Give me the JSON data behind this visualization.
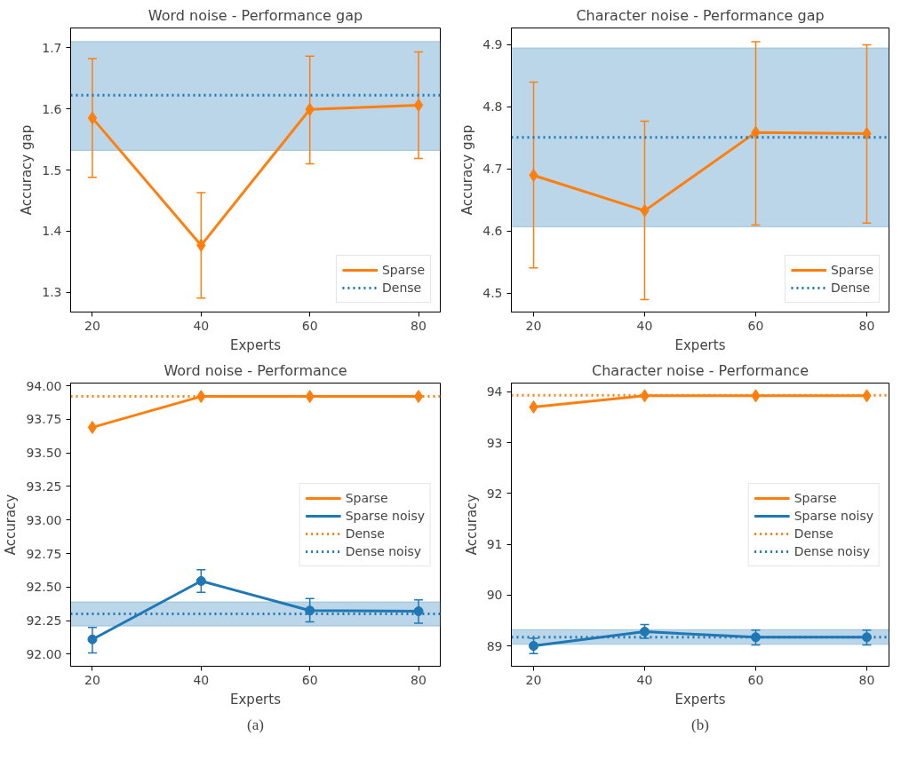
{
  "chart_data": [
    {
      "type": "line",
      "title": "Word noise - Performance gap",
      "xlabel": "Experts",
      "ylabel": "Accuracy gap",
      "x": [
        20,
        40,
        60,
        80
      ],
      "xlim": [
        16,
        84
      ],
      "xticks": [
        20,
        40,
        60,
        80
      ],
      "ylim": [
        1.268,
        1.732
      ],
      "yticks": [
        {
          "value": 1.3,
          "label": "1.3"
        },
        {
          "value": 1.4,
          "label": "1.4"
        },
        {
          "value": 1.5,
          "label": "1.5"
        },
        {
          "value": 1.6,
          "label": "1.6"
        },
        {
          "value": 1.7,
          "label": "1.7"
        }
      ],
      "grid": false,
      "legend": "bottom right",
      "series": [
        {
          "name": "Sparse",
          "color": "#ff7f0e",
          "marker": "diamond",
          "values": [
            1.585,
            1.377,
            1.599,
            1.606
          ],
          "errors": [
            [
              1.488,
              1.682
            ],
            [
              1.291,
              1.463
            ],
            [
              1.51,
              1.686
            ],
            [
              1.519,
              1.693
            ]
          ]
        }
      ],
      "ref_lines": [
        {
          "axis": "y",
          "value": 1.622,
          "label": "Dense",
          "color": "#1f77b4",
          "line_style": "dotted"
        }
      ],
      "bands": [
        {
          "axis": "y",
          "from": 1.532,
          "to": 1.71,
          "color": "#1f77b4"
        }
      ]
    },
    {
      "type": "line",
      "title": "Character noise - Performance gap",
      "xlabel": "Experts",
      "ylabel": "Accuracy gap",
      "x": [
        20,
        40,
        60,
        80
      ],
      "xlim": [
        16,
        84
      ],
      "xticks": [
        20,
        40,
        60,
        80
      ],
      "ylim": [
        4.47,
        4.927
      ],
      "yticks": [
        {
          "value": 4.5,
          "label": "4.5"
        },
        {
          "value": 4.6,
          "label": "4.6"
        },
        {
          "value": 4.7,
          "label": "4.7"
        },
        {
          "value": 4.8,
          "label": "4.8"
        },
        {
          "value": 4.9,
          "label": "4.9"
        }
      ],
      "grid": false,
      "legend": "bottom right",
      "series": [
        {
          "name": "Sparse",
          "color": "#ff7f0e",
          "marker": "diamond",
          "values": [
            4.69,
            4.633,
            4.759,
            4.757
          ],
          "errors": [
            [
              4.541,
              4.84
            ],
            [
              4.49,
              4.777
            ],
            [
              4.61,
              4.905
            ],
            [
              4.613,
              4.9
            ]
          ]
        }
      ],
      "ref_lines": [
        {
          "axis": "y",
          "value": 4.751,
          "label": "Dense",
          "color": "#1f77b4",
          "line_style": "dotted"
        }
      ],
      "bands": [
        {
          "axis": "y",
          "from": 4.607,
          "to": 4.895,
          "color": "#1f77b4"
        }
      ]
    },
    {
      "type": "line",
      "title": "Word noise - Performance",
      "xlabel": "Experts",
      "ylabel": "Accuracy",
      "x": [
        20,
        40,
        60,
        80
      ],
      "xlim": [
        16,
        84
      ],
      "xticks": [
        20,
        40,
        60,
        80
      ],
      "ylim": [
        91.91,
        94.02
      ],
      "yticks": [
        {
          "value": 92,
          "label": "92.00"
        },
        {
          "value": 92.25,
          "label": "92.25"
        },
        {
          "value": 92.5,
          "label": "92.50"
        },
        {
          "value": 92.75,
          "label": "92.75"
        },
        {
          "value": 93,
          "label": "93.00"
        },
        {
          "value": 93.25,
          "label": "93.25"
        },
        {
          "value": 93.5,
          "label": "93.50"
        },
        {
          "value": 93.75,
          "label": "93.75"
        },
        {
          "value": 94,
          "label": "94.00"
        }
      ],
      "grid": false,
      "legend": "right",
      "annotations": [
        "(a)"
      ],
      "series": [
        {
          "name": "Sparse",
          "color": "#ff7f0e",
          "marker": "diamond",
          "values": [
            93.69,
            93.92,
            93.92,
            93.92
          ]
        },
        {
          "name": "Sparse noisy",
          "color": "#1f77b4",
          "marker": "circle",
          "values": [
            92.11,
            92.545,
            92.325,
            92.32
          ],
          "errors": [
            [
              92.01,
              92.2
            ],
            [
              92.46,
              92.63
            ],
            [
              92.24,
              92.415
            ],
            [
              92.23,
              92.405
            ]
          ]
        }
      ],
      "ref_lines": [
        {
          "axis": "y",
          "value": 93.92,
          "label": "Dense",
          "color": "#ff7f0e",
          "line_style": "dotted"
        },
        {
          "axis": "y",
          "value": 92.3,
          "label": "Dense noisy",
          "color": "#1f77b4",
          "line_style": "dotted"
        }
      ],
      "bands": [
        {
          "axis": "y",
          "from": 92.21,
          "to": 92.39,
          "color": "#1f77b4"
        }
      ]
    },
    {
      "type": "line",
      "title": "Character noise - Performance",
      "xlabel": "Experts",
      "ylabel": "Accuracy",
      "x": [
        20,
        40,
        60,
        80
      ],
      "xlim": [
        16,
        84
      ],
      "xticks": [
        20,
        40,
        60,
        80
      ],
      "ylim": [
        88.6,
        94.17
      ],
      "yticks": [
        89,
        90,
        91,
        92,
        93,
        94
      ],
      "grid": false,
      "legend": "right",
      "annotations": [
        "(b)"
      ],
      "series": [
        {
          "name": "Sparse",
          "color": "#ff7f0e",
          "marker": "diamond",
          "values": [
            93.7,
            93.92,
            93.92,
            93.92
          ]
        },
        {
          "name": "Sparse noisy",
          "color": "#1f77b4",
          "marker": "circle",
          "values": [
            89.0,
            89.28,
            89.17,
            89.17
          ],
          "errors": [
            [
              88.85,
              89.15
            ],
            [
              89.15,
              89.42
            ],
            [
              89.02,
              89.31
            ],
            [
              89.02,
              89.31
            ]
          ]
        }
      ],
      "ref_lines": [
        {
          "axis": "y",
          "value": 93.93,
          "label": "Dense",
          "color": "#ff7f0e",
          "line_style": "dotted"
        },
        {
          "axis": "y",
          "value": 89.17,
          "label": "Dense noisy",
          "color": "#1f77b4",
          "line_style": "dotted"
        }
      ],
      "bands": [
        {
          "axis": "y",
          "from": 89.03,
          "to": 89.32,
          "color": "#1f77b4"
        }
      ]
    }
  ]
}
